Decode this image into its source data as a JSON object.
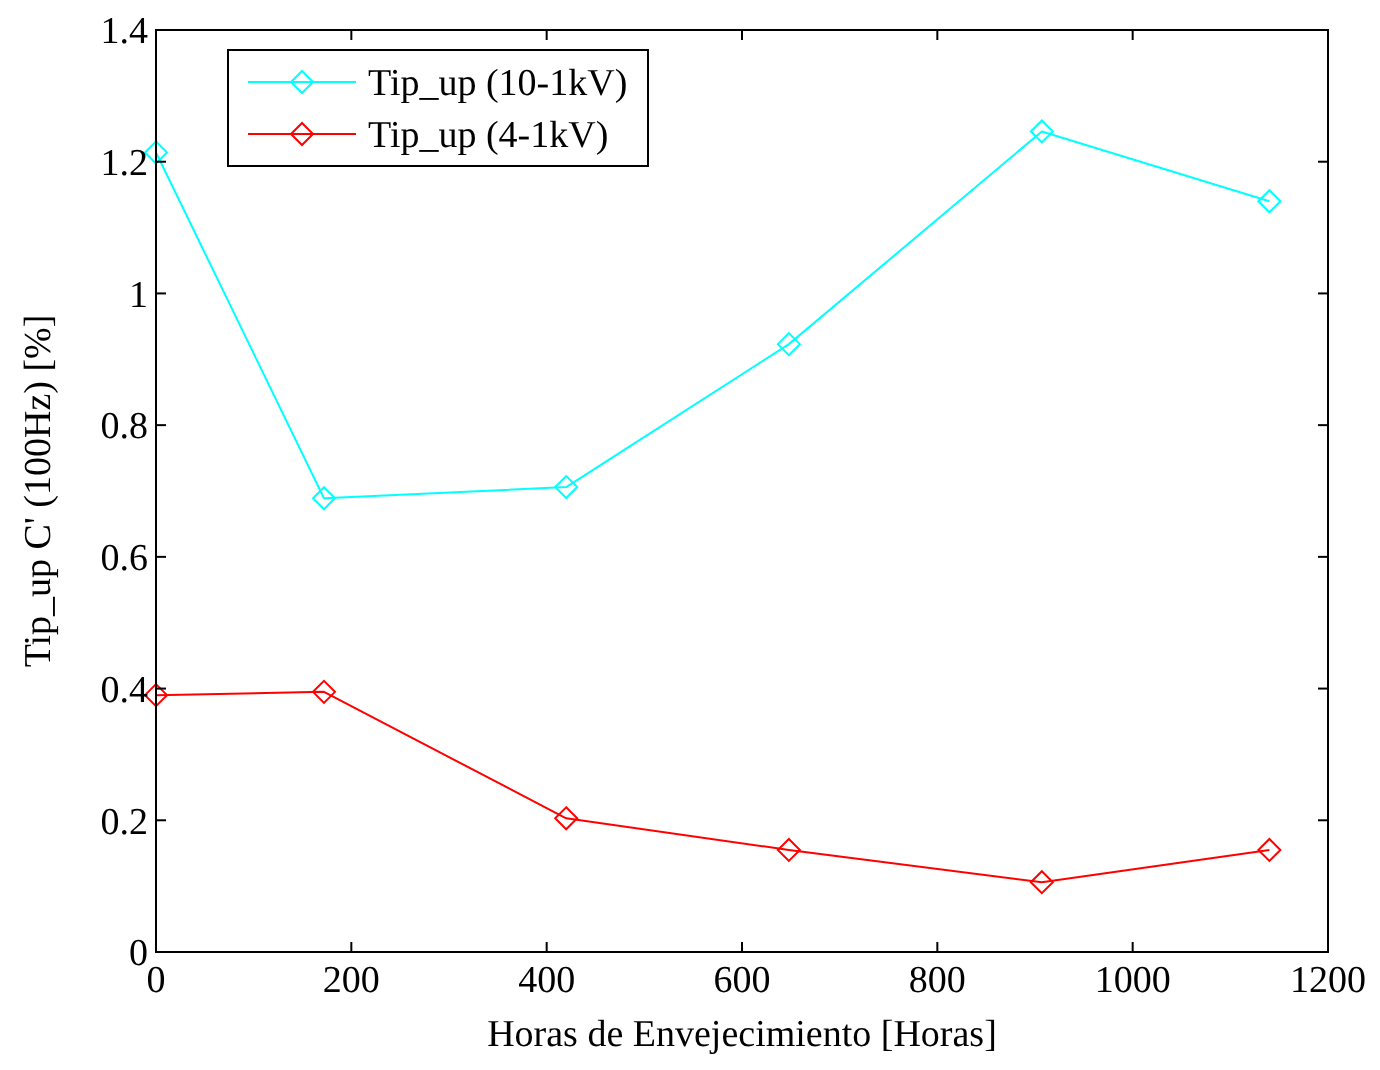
{
  "chart_data": {
    "type": "line",
    "xlabel": "Horas de Envejecimiento [Horas]",
    "ylabel": "Tip_up C' (100Hz) [%]",
    "x": [
      0,
      172,
      420,
      648,
      907,
      1140
    ],
    "series": [
      {
        "name": "Tip_up (10-1kV)",
        "color": "#00ffff",
        "values": [
          1.214,
          0.689,
          0.706,
          0.923,
          1.246,
          1.14
        ]
      },
      {
        "name": "Tip_up (4-1kV)",
        "color": "#ff0000",
        "values": [
          0.39,
          0.395,
          0.203,
          0.155,
          0.106,
          0.155
        ]
      }
    ],
    "xlim": [
      0,
      1200
    ],
    "xticks": [
      0,
      200,
      400,
      600,
      800,
      1000,
      1200
    ],
    "ylim": [
      0,
      1.4
    ],
    "yticks": [
      0,
      0.2,
      0.4,
      0.6,
      0.8,
      1,
      1.2,
      1.4
    ],
    "legend": "top left",
    "marker": "diamond",
    "line_style": "solid",
    "grid": false
  }
}
